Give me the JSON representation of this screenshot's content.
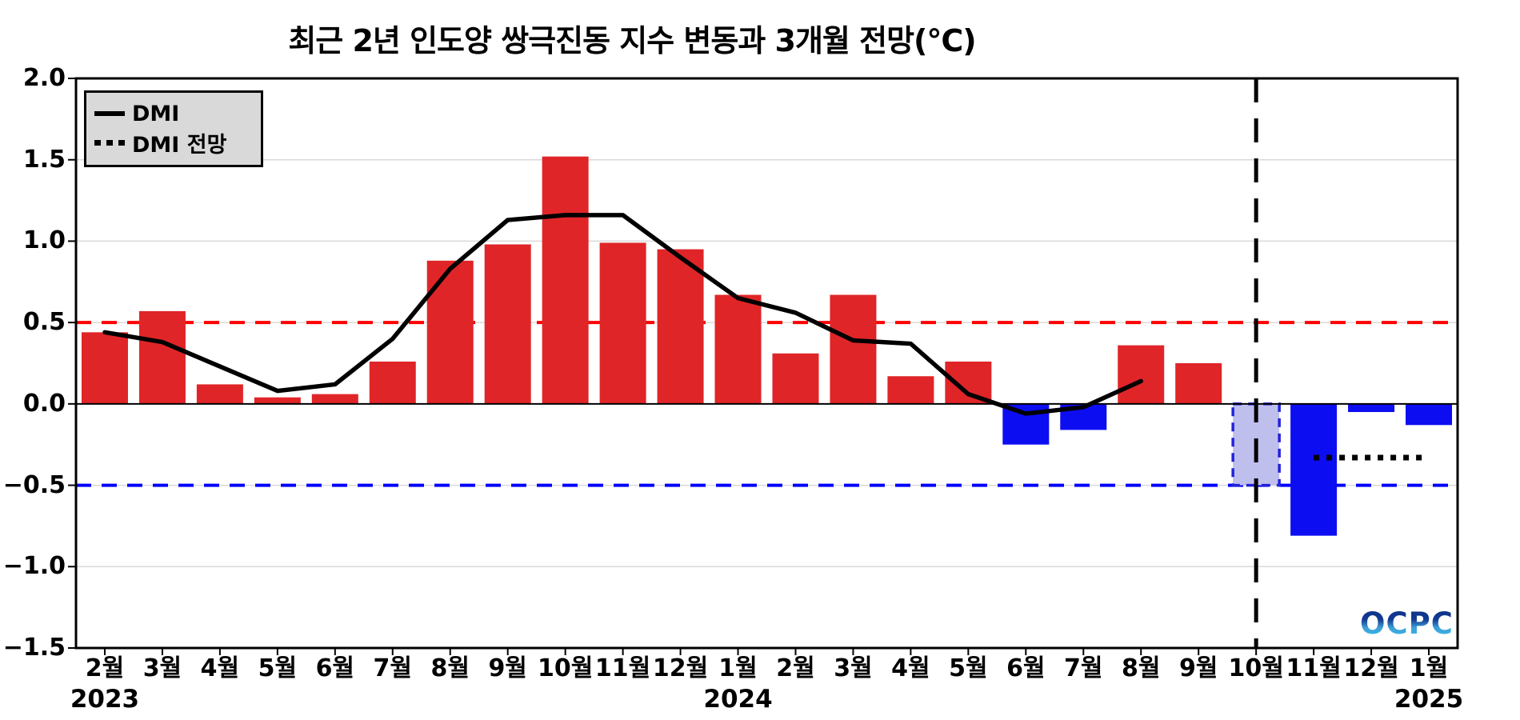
{
  "title": "최근 2년 인도양 쌍극진동 지수 변동과 3개월 전망(°C)",
  "legend": {
    "dmi_label": "DMI",
    "forecast_label": "DMI 전망"
  },
  "logo_text": "OCPC",
  "chart_data": {
    "type": "bar",
    "title": "최근 2년 인도양 쌍극진동 지수 변동과 3개월 전망(°C)",
    "categories": [
      "2월",
      "3월",
      "4월",
      "5월",
      "6월",
      "7월",
      "8월",
      "9월",
      "10월",
      "11월",
      "12월",
      "1월",
      "2월",
      "3월",
      "4월",
      "5월",
      "6월",
      "7월",
      "8월",
      "9월",
      "10월",
      "11월",
      "12월",
      "1월"
    ],
    "year_labels": [
      {
        "label": "2023",
        "month_index": 0
      },
      {
        "label": "2024",
        "month_index": 11
      },
      {
        "label": "2025",
        "month_index": 23
      }
    ],
    "bar_values": [
      0.44,
      0.57,
      0.12,
      0.04,
      0.06,
      0.26,
      0.88,
      0.98,
      1.52,
      0.99,
      0.95,
      0.67,
      0.31,
      0.67,
      0.17,
      0.26,
      -0.25,
      -0.16,
      0.36,
      0.25,
      -0.5,
      -0.81,
      -0.05,
      -0.13
    ],
    "forecast_bar_index": 20,
    "series": [
      {
        "name": "DMI",
        "style": "solid",
        "start_index": 0,
        "values": [
          0.44,
          0.38,
          0.23,
          0.08,
          0.12,
          0.4,
          0.83,
          1.13,
          1.16,
          1.16,
          0.9,
          0.65,
          0.56,
          0.39,
          0.37,
          0.06,
          -0.06,
          -0.02,
          0.14
        ]
      },
      {
        "name": "DMI 전망",
        "style": "dotted",
        "start_index": 21,
        "values": [
          -0.33,
          -0.33,
          -0.33
        ]
      }
    ],
    "ylim": [
      -1.5,
      2.0
    ],
    "yticks": [
      {
        "label": "2.0",
        "value": 2.0
      },
      {
        "label": "1.5",
        "value": 1.5
      },
      {
        "label": "1.0",
        "value": 1.0
      },
      {
        "label": "0.5",
        "value": 0.5
      },
      {
        "label": "0.0",
        "value": 0.0
      },
      {
        "label": "−0.5",
        "value": -0.5
      },
      {
        "label": "−1.0",
        "value": -1.0
      },
      {
        "label": "−1.5",
        "value": -1.5
      }
    ],
    "reference_lines": {
      "positive_threshold": 0.5,
      "negative_threshold": -0.5,
      "zero": 0.0
    },
    "forecast_divider_month_index": 20,
    "grid": true,
    "legend_position": "upper-left",
    "colors": {
      "positive_bar": "#e02528",
      "negative_bar": "#0d0df2",
      "forecast_bar_fill": "#bfbfee",
      "forecast_bar_border": "#2222dd",
      "dmi_line": "#000000",
      "forecast_line": "#000000",
      "positive_ref_line": "#ff0000",
      "negative_ref_line": "#0000ff",
      "divider_line": "#000000",
      "gridline": "#d9d9d9"
    }
  }
}
